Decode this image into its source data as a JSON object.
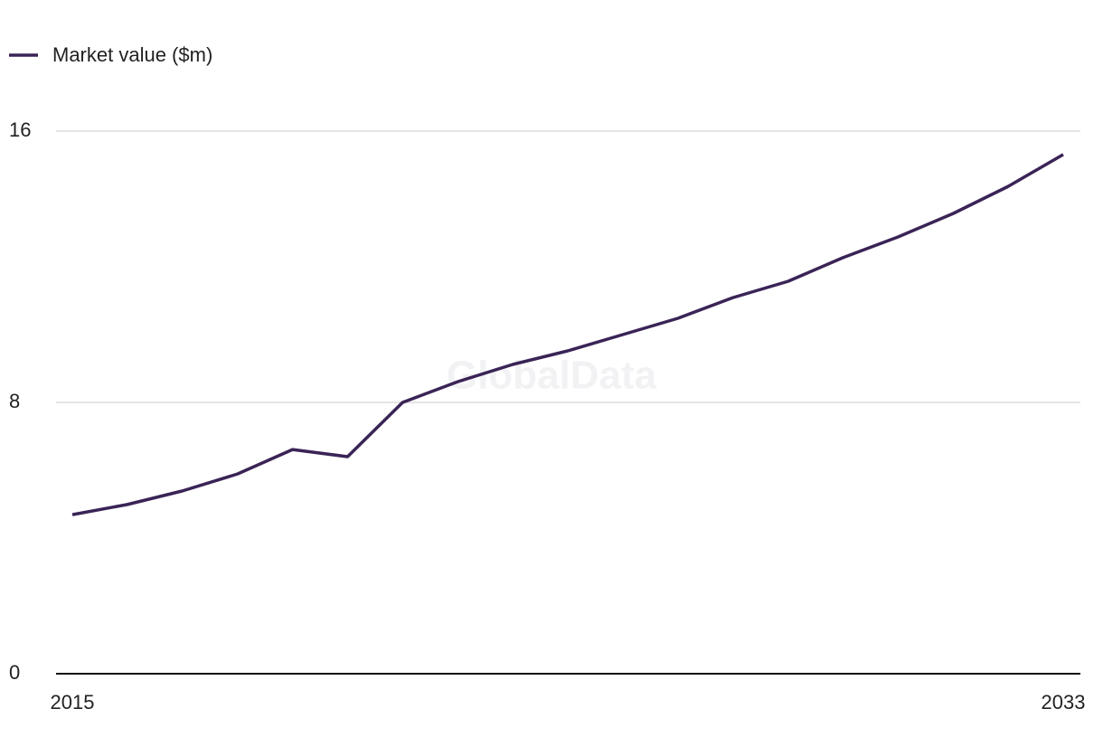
{
  "chart_data": {
    "type": "line",
    "watermark": "GlobalData",
    "x": [
      2015,
      2016,
      2017,
      2018,
      2019,
      2020,
      2021,
      2022,
      2023,
      2024,
      2025,
      2026,
      2027,
      2028,
      2029,
      2030,
      2031,
      2032,
      2033
    ],
    "series": [
      {
        "name": "Market value ($m)",
        "color": "#3a2456",
        "values": [
          4.69,
          4.99,
          5.39,
          5.89,
          6.61,
          6.4,
          8.0,
          8.61,
          9.12,
          9.52,
          10.0,
          10.48,
          11.09,
          11.57,
          12.27,
          12.88,
          13.57,
          14.37,
          15.31
        ]
      }
    ],
    "xlim": [
      2015,
      2033
    ],
    "xticks": [
      2015,
      2033
    ],
    "ylim": [
      0,
      16
    ],
    "yticks": [
      0,
      8,
      16
    ],
    "grid": true,
    "legend": "top-left"
  }
}
